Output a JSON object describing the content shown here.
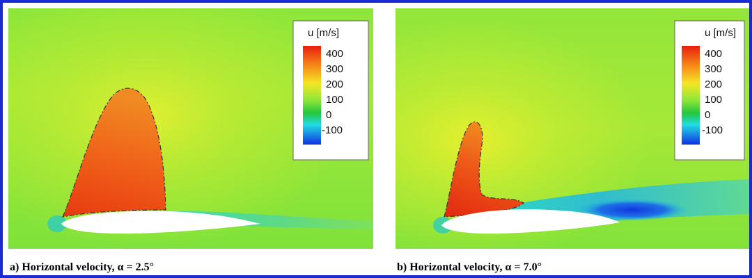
{
  "legend": {
    "title": "u [m/s]",
    "ticks": [
      "400",
      "300",
      "200",
      "100",
      "0",
      "-100"
    ]
  },
  "panels": [
    {
      "caption": "a) Horizontal velocity, α = 2.5°"
    },
    {
      "caption": "b) Horizontal velocity, α = 7.0°"
    }
  ],
  "colors": {
    "border": "#1a2bd6",
    "freestream": "#8ee63a",
    "supersonic": "#f05a14",
    "reverse": "#1030e0",
    "colormap": [
      "#e81e0e",
      "#f57f17",
      "#f5e624",
      "#8ee63a",
      "#24c63c",
      "#22dce6",
      "#1030e0"
    ]
  }
}
